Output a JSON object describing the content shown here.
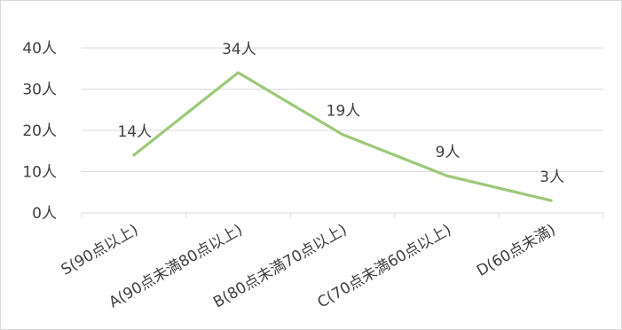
{
  "chart_data": {
    "type": "line",
    "categories": [
      "S(90点以上)",
      "A(90点未満80点以上)",
      "B(80点未満70点以上)",
      "C(70点未満60点以上)",
      "D(60点未満)"
    ],
    "series": [
      {
        "values": [
          14,
          34,
          19,
          9,
          3
        ],
        "data_labels": [
          "14人",
          "34人",
          "19人",
          "9人",
          "3人"
        ],
        "color": "#9dc97a"
      }
    ],
    "y_ticks": [
      0,
      10,
      20,
      30,
      40
    ],
    "y_tick_labels": [
      "0人",
      "10人",
      "20人",
      "30人",
      "40人"
    ],
    "ylim": [
      0,
      40
    ],
    "grid": true,
    "gridline_color": "#d9d9d9",
    "legend": false
  }
}
